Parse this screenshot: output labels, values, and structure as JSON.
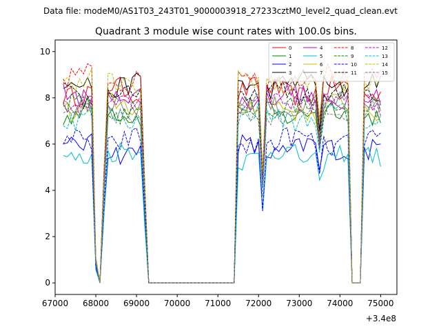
{
  "figure": {
    "suptitle": "Data file: modeM0/AS1T03_243T01_9000003918_27233cztM0_level2_quad_clean.evt"
  },
  "chart_data": {
    "type": "line",
    "title": "Quadrant 3 module wise count rates with 100.0s bins.",
    "xlabel": "",
    "ylabel": "",
    "x_offset_label": "+3.4e8",
    "xlim": [
      67000,
      75400
    ],
    "ylim": [
      -0.5,
      10.5
    ],
    "x_ticks": [
      67000,
      68000,
      69000,
      70000,
      71000,
      72000,
      73000,
      74000,
      75000
    ],
    "y_ticks": [
      0,
      2,
      4,
      6,
      8,
      10
    ],
    "legend_location": "upper-right",
    "legend_columns": 4,
    "segments": [
      {
        "x_start": 67200,
        "x_end": 67900,
        "level": 1.0
      },
      {
        "x_start": 68000,
        "x_end": 68000,
        "level": 0.12
      },
      {
        "x_start": 68100,
        "x_end": 68100,
        "level": 0.0
      },
      {
        "x_start": 68200,
        "x_end": 68200,
        "level": 0.55
      },
      {
        "x_start": 68300,
        "x_end": 69100,
        "level": 1.0
      },
      {
        "x_start": 69200,
        "x_end": 69200,
        "level": 0.5
      },
      {
        "x_start": 69300,
        "x_end": 71400,
        "level": 0.0
      },
      {
        "x_start": 71500,
        "x_end": 72000,
        "level": 1.0
      },
      {
        "x_start": 72100,
        "x_end": 72100,
        "level": 0.55
      },
      {
        "x_start": 72200,
        "x_end": 73400,
        "level": 1.0
      },
      {
        "x_start": 73500,
        "x_end": 73500,
        "level": 0.78
      },
      {
        "x_start": 73600,
        "x_end": 74200,
        "level": 1.0
      },
      {
        "x_start": 74300,
        "x_end": 74500,
        "level": 0.0
      },
      {
        "x_start": 74600,
        "x_end": 75000,
        "level": 1.0
      }
    ],
    "series": [
      {
        "name": "0",
        "color": "#ff0000",
        "style": "solid",
        "base": 8.3
      },
      {
        "name": "1",
        "color": "#008000",
        "style": "solid",
        "base": 7.4
      },
      {
        "name": "2",
        "color": "#0000ff",
        "style": "solid",
        "base": 5.8
      },
      {
        "name": "3",
        "color": "#000000",
        "style": "solid",
        "base": 8.6
      },
      {
        "name": "4",
        "color": "#c000c0",
        "style": "solid",
        "base": 8.0
      },
      {
        "name": "5",
        "color": "#00bfbf",
        "style": "solid",
        "base": 5.5
      },
      {
        "name": "6",
        "color": "#bfbf00",
        "style": "solid",
        "base": 7.6
      },
      {
        "name": "7",
        "color": "#808080",
        "style": "solid",
        "base": 7.7
      },
      {
        "name": "8",
        "color": "#ff0000",
        "style": "dashed",
        "base": 8.9
      },
      {
        "name": "9",
        "color": "#008000",
        "style": "dashed",
        "base": 7.5
      },
      {
        "name": "10",
        "color": "#0000ff",
        "style": "dashed",
        "base": 6.1
      },
      {
        "name": "11",
        "color": "#000000",
        "style": "dashed",
        "base": 8.1
      },
      {
        "name": "12",
        "color": "#c000c0",
        "style": "dashed",
        "base": 7.9
      },
      {
        "name": "13",
        "color": "#00bfbf",
        "style": "dashed",
        "base": 7.2
      },
      {
        "name": "14",
        "color": "#bfbf00",
        "style": "dashed",
        "base": 8.7
      },
      {
        "name": "15",
        "color": "#808080",
        "style": "dashed",
        "base": 7.4
      }
    ]
  }
}
